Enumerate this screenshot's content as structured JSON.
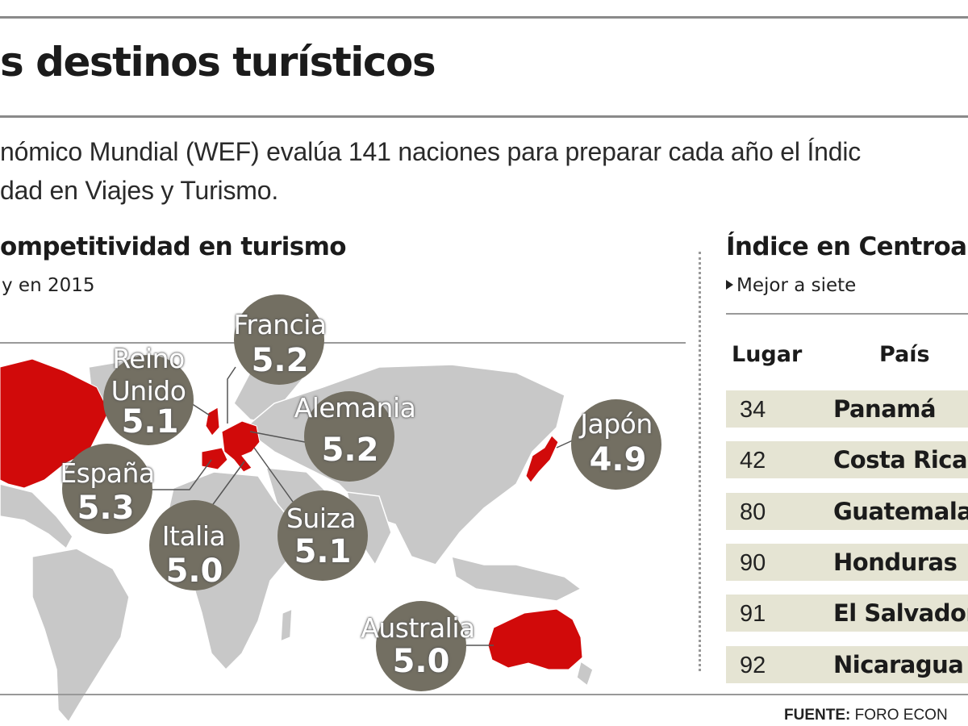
{
  "title": "s destinos turísticos",
  "intro": {
    "line1": "nómico Mundial (WEF) evalúa 141 naciones para preparar cada año el Índic",
    "line2": "dad en Viajes y Turismo."
  },
  "map_section": {
    "heading": "ompetitividad en turismo",
    "subheading": "y en 2015"
  },
  "map_markers": [
    {
      "name": "Francia",
      "value": "5.2"
    },
    {
      "name": "Reino Unido",
      "name_line1": "Reino",
      "name_line2": "Unido",
      "value": "5.1"
    },
    {
      "name": "Alemania",
      "value": "5.2"
    },
    {
      "name": "Japón",
      "value": "4.9"
    },
    {
      "name": "España",
      "value": "5.3"
    },
    {
      "name": "Italia",
      "value": "5.0"
    },
    {
      "name": "Suiza",
      "value": "5.1"
    },
    {
      "name": "Australia",
      "value": "5.0"
    }
  ],
  "colors": {
    "highlight_country": "#d10a0a",
    "land": "#c8c8c8",
    "bubble": "#736f62",
    "table_row": "#e5e4d3"
  },
  "table_section": {
    "heading": "Índice en Centroar",
    "note": "Mejor a siete",
    "columns": [
      "Lugar",
      "País"
    ],
    "rows": [
      {
        "rank": "34",
        "country": "Panamá"
      },
      {
        "rank": "42",
        "country": "Costa Rica"
      },
      {
        "rank": "80",
        "country": "Guatemala"
      },
      {
        "rank": "90",
        "country": "Honduras"
      },
      {
        "rank": "91",
        "country": "El Salvador"
      },
      {
        "rank": "92",
        "country": "Nicaragua"
      }
    ]
  },
  "source": {
    "label": "FUENTE:",
    "text": "FORO ECON"
  }
}
